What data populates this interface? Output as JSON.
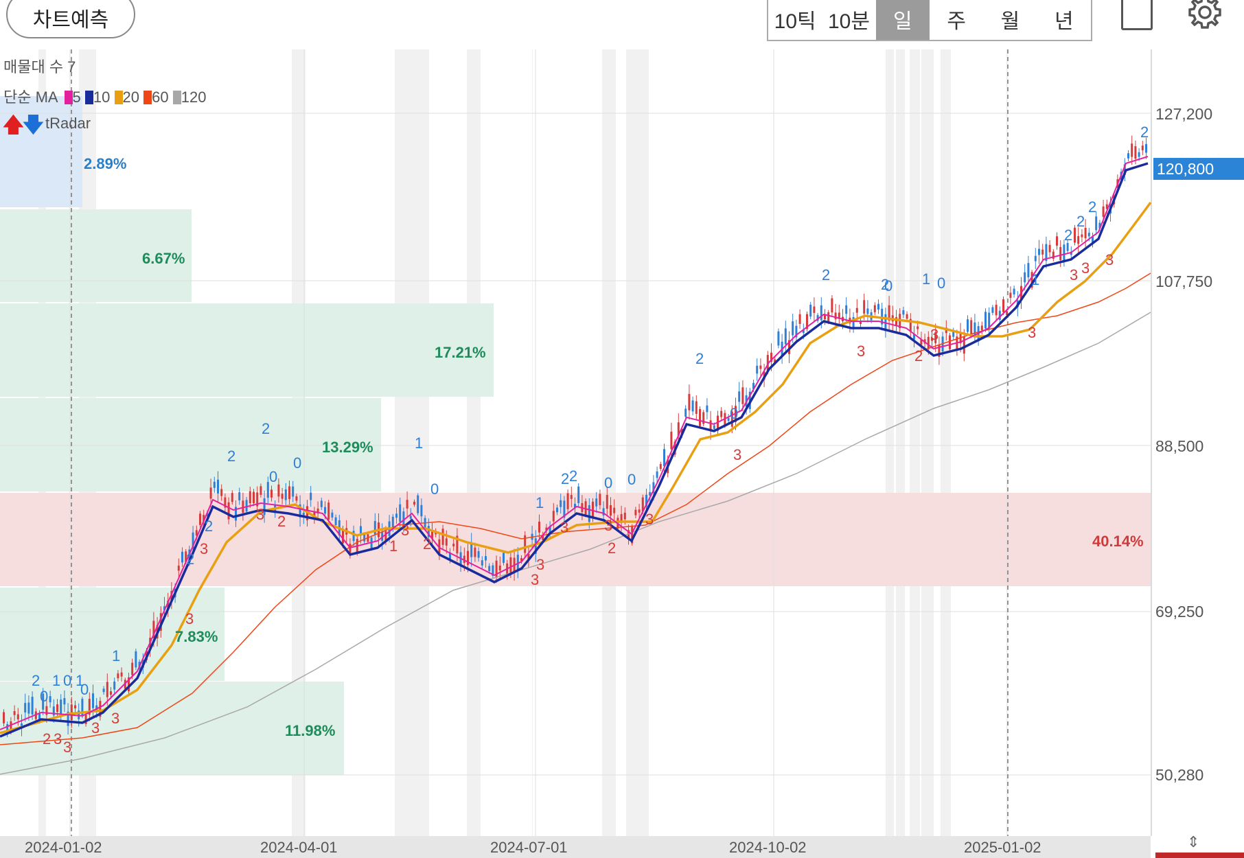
{
  "header": {
    "predict_label": "차트예측",
    "periods": [
      "10틱",
      "10분",
      "일",
      "주",
      "월",
      "년"
    ],
    "active_period": "일"
  },
  "overlay": {
    "volume_profile_label": "매물대 수 7",
    "ma_label": "단순 MA",
    "ma_periods": [
      {
        "label": "5",
        "color": "#e3209e"
      },
      {
        "label": "10",
        "color": "#1a2b9c"
      },
      {
        "label": "20",
        "color": "#e8a012"
      },
      {
        "label": "60",
        "color": "#f04515"
      },
      {
        "label": "120",
        "color": "#a8a8a8"
      }
    ],
    "radar_label": "tRadar"
  },
  "volume_profile": [
    {
      "pct": "2.89%",
      "color": "#2b7fc9"
    },
    {
      "pct": "6.67%",
      "color": "#1d8c5a"
    },
    {
      "pct": "17.21%",
      "color": "#1d8c5a"
    },
    {
      "pct": "13.29%",
      "color": "#1d8c5a"
    },
    {
      "pct": "40.14%",
      "color": "#d03a3a"
    },
    {
      "pct": "7.83%",
      "color": "#1d8c5a"
    },
    {
      "pct": "11.98%",
      "color": "#1d8c5a"
    }
  ],
  "y_axis": [
    "127,200",
    "107,750",
    "88,500",
    "69,250",
    "50,280"
  ],
  "current_price": "120,800",
  "x_axis": [
    "2024-01-02",
    "2024-04-01",
    "2024-07-01",
    "2024-10-02",
    "2025-01-02"
  ],
  "colors": {
    "up": "#d63b3b",
    "down": "#2e7fd6",
    "badge": "#2b84d6"
  }
}
